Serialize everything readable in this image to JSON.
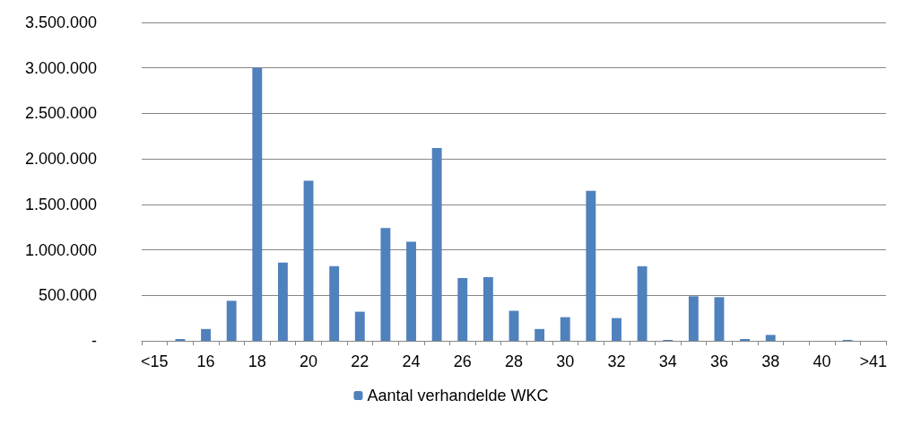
{
  "chart_data": {
    "type": "bar",
    "categories": [
      "<15",
      null,
      "16",
      null,
      "18",
      null,
      "20",
      null,
      "22",
      null,
      "24",
      null,
      "26",
      null,
      "28",
      null,
      "30",
      null,
      "32",
      null,
      "34",
      null,
      "36",
      null,
      "38",
      null,
      "40",
      null,
      ">41"
    ],
    "series": [
      {
        "name": "Aantal verhandelde WKC",
        "color": "#4f81bd",
        "values": [
          0,
          20000,
          130000,
          440000,
          3000000,
          860000,
          1760000,
          820000,
          320000,
          1240000,
          1090000,
          2120000,
          690000,
          700000,
          330000,
          130000,
          260000,
          1650000,
          250000,
          820000,
          10000,
          490000,
          480000,
          20000,
          65000,
          0,
          0,
          10000,
          0
        ]
      }
    ],
    "ylim": [
      0,
      3500000
    ],
    "yticks": [
      {
        "value": 0,
        "label": "-"
      },
      {
        "value": 500000,
        "label": "500.000"
      },
      {
        "value": 1000000,
        "label": "1.000.000"
      },
      {
        "value": 1500000,
        "label": "1.500.000"
      },
      {
        "value": 2000000,
        "label": "2.000.000"
      },
      {
        "value": 2500000,
        "label": "2.500.000"
      },
      {
        "value": 3000000,
        "label": "3.000.000"
      },
      {
        "value": 3500000,
        "label": "3.500.000"
      }
    ],
    "grid": "y",
    "legend": "bottom"
  }
}
